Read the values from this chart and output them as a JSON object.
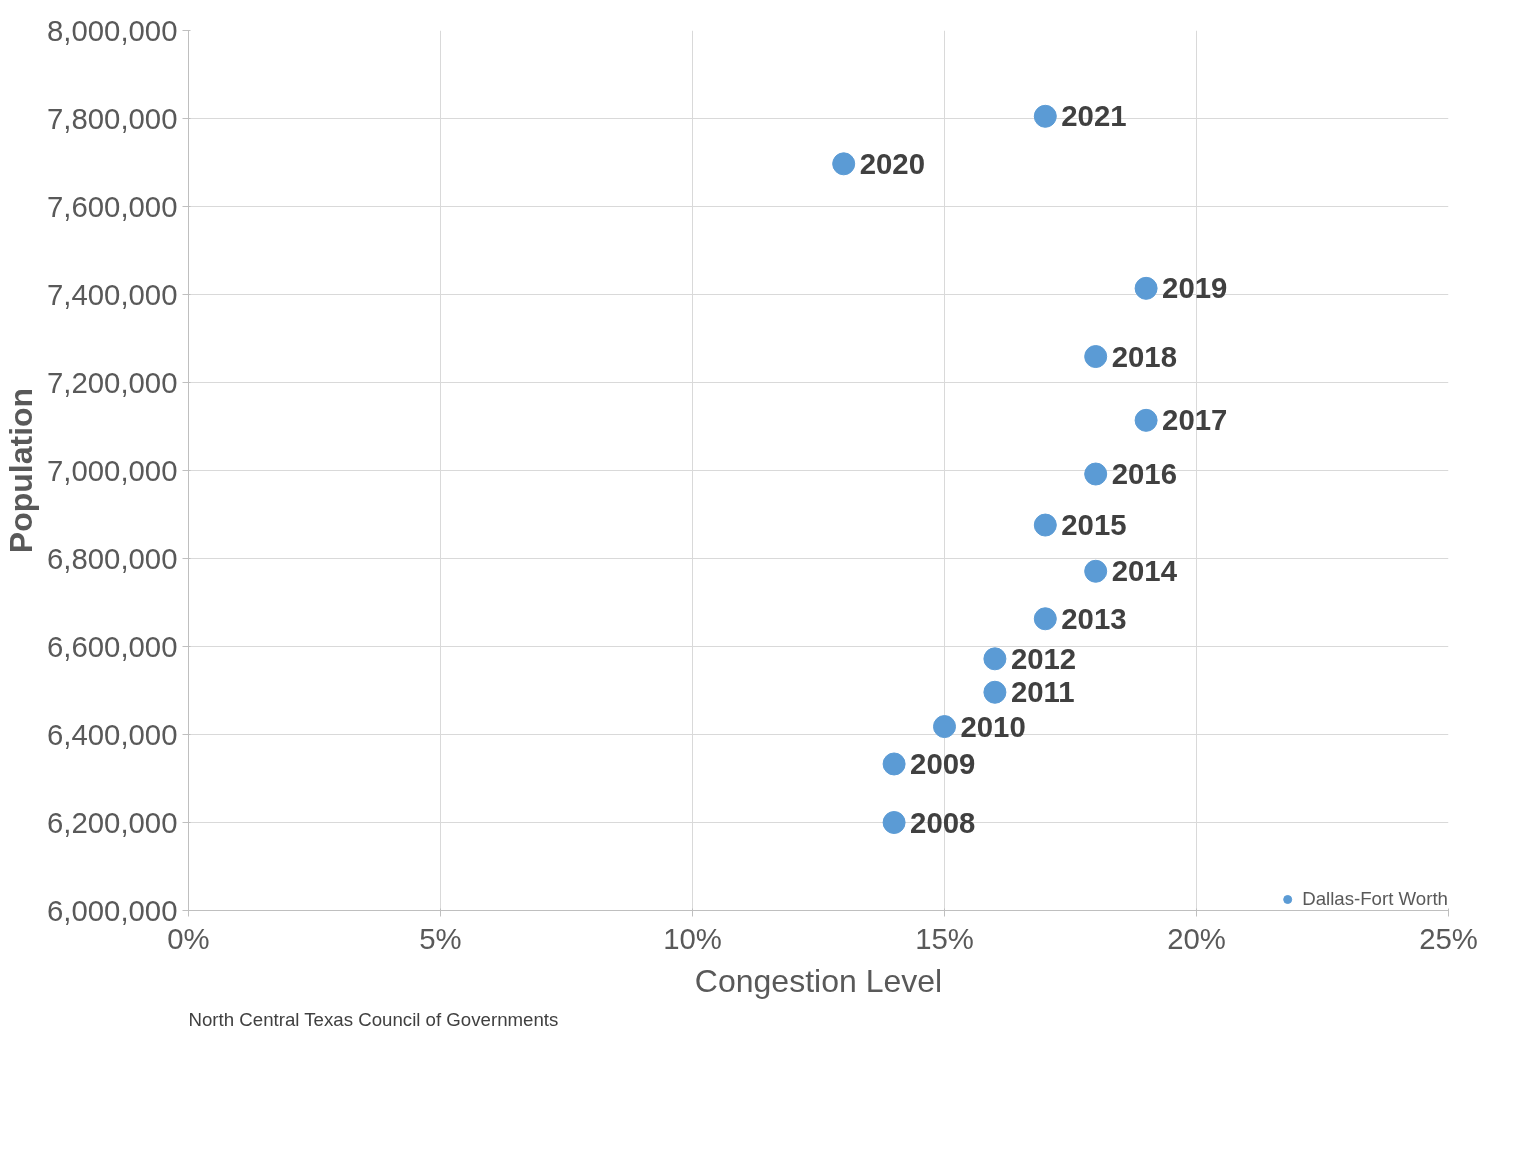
{
  "chart_data": {
    "type": "scatter",
    "xlabel": "Congestion Level",
    "ylabel": "Population",
    "series": [
      {
        "name": "Dallas-Fort Worth",
        "color": "#5b9bd5",
        "x": [
          14,
          14,
          15,
          16,
          16,
          17,
          18,
          17,
          18,
          19,
          18,
          19,
          13,
          17
        ],
        "values": [
          6200000,
          6333000,
          6418000,
          6496000,
          6572000,
          6663000,
          6771000,
          6876000,
          6992000,
          7114000,
          7259000,
          7414000,
          7697000,
          7805000
        ]
      }
    ],
    "xlim": [
      0,
      25
    ],
    "xticks": [
      {
        "value": 0,
        "label": "0%"
      },
      {
        "value": 5,
        "label": "5%"
      },
      {
        "value": 10,
        "label": "10%"
      },
      {
        "value": 15,
        "label": "15%"
      },
      {
        "value": 20,
        "label": "20%"
      },
      {
        "value": 25,
        "label": "25%"
      }
    ],
    "ylim": [
      6000000,
      8000000
    ],
    "yticks": [
      {
        "value": 6000000,
        "label": "6,000,000"
      },
      {
        "value": 6200000,
        "label": "6,200,000"
      },
      {
        "value": 6400000,
        "label": "6,400,000"
      },
      {
        "value": 6600000,
        "label": "6,600,000"
      },
      {
        "value": 6800000,
        "label": "6,800,000"
      },
      {
        "value": 7000000,
        "label": "7,000,000"
      },
      {
        "value": 7200000,
        "label": "7,200,000"
      },
      {
        "value": 7400000,
        "label": "7,400,000"
      },
      {
        "value": 7600000,
        "label": "7,600,000"
      },
      {
        "value": 7800000,
        "label": "7,800,000"
      },
      {
        "value": 8000000,
        "label": "8,000,000"
      }
    ],
    "grid": true,
    "legend": "bottom right",
    "marker": "circle",
    "annotations": [
      {
        "text": "2008",
        "x": 14,
        "y": 6200000
      },
      {
        "text": "2009",
        "x": 14,
        "y": 6333000
      },
      {
        "text": "2010",
        "x": 15,
        "y": 6418000
      },
      {
        "text": "2011",
        "x": 16,
        "y": 6496000
      },
      {
        "text": "2012",
        "x": 16,
        "y": 6572000
      },
      {
        "text": "2013",
        "x": 17,
        "y": 6663000
      },
      {
        "text": "2014",
        "x": 18,
        "y": 6771000
      },
      {
        "text": "2015",
        "x": 17,
        "y": 6876000
      },
      {
        "text": "2016",
        "x": 18,
        "y": 6992000
      },
      {
        "text": "2017",
        "x": 19,
        "y": 7114000
      },
      {
        "text": "2018",
        "x": 18,
        "y": 7259000
      },
      {
        "text": "2019",
        "x": 19,
        "y": 7414000
      },
      {
        "text": "2020",
        "x": 13,
        "y": 7697000
      },
      {
        "text": "2021",
        "x": 17,
        "y": 7805000
      },
      "North Central Texas Council of Governments"
    ]
  }
}
